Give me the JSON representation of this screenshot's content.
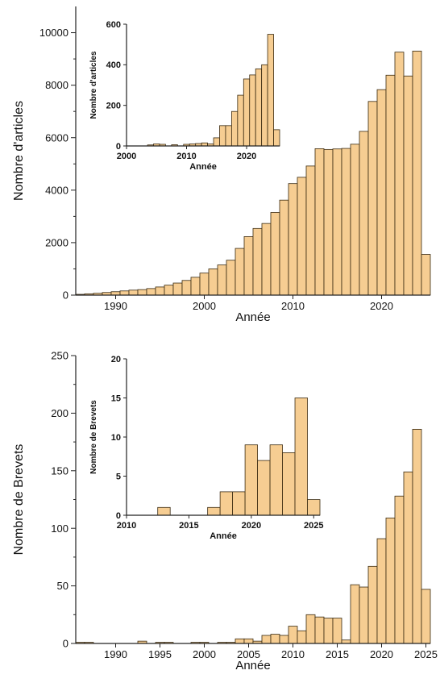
{
  "colors": {
    "bar_fill": "#f6cd92",
    "bar_stroke": "#3a2a10",
    "axis": "#222222"
  },
  "chart_data": [
    {
      "id": "articles_main",
      "type": "bar",
      "title": "",
      "xlabel": "Année",
      "ylabel": "Nombre d'articles",
      "xlim": [
        1985.5,
        2025.5
      ],
      "ylim": [
        0,
        11000
      ],
      "xticks": [
        1990,
        2000,
        2010,
        2020
      ],
      "yticks": [
        0,
        2000,
        4000,
        6000,
        8000,
        10000
      ],
      "grid": false,
      "bin_width": 1,
      "x": [
        1986,
        1987,
        1988,
        1989,
        1990,
        1991,
        1992,
        1993,
        1994,
        1995,
        1996,
        1997,
        1998,
        1999,
        2000,
        2001,
        2002,
        2003,
        2004,
        2005,
        2006,
        2007,
        2008,
        2009,
        2010,
        2011,
        2012,
        2013,
        2014,
        2015,
        2016,
        2017,
        2018,
        2019,
        2020,
        2021,
        2022,
        2023,
        2024,
        2025
      ],
      "values": [
        30,
        50,
        70,
        100,
        130,
        160,
        190,
        210,
        250,
        310,
        380,
        460,
        560,
        680,
        840,
        1000,
        1150,
        1330,
        1780,
        2230,
        2540,
        2730,
        3150,
        3620,
        4250,
        4490,
        4920,
        5580,
        5550,
        5570,
        5590,
        5750,
        6240,
        7380,
        7830,
        8380,
        9260,
        8350,
        9300,
        1550
      ]
    },
    {
      "id": "articles_inset",
      "type": "bar",
      "title": "",
      "xlabel": "Année",
      "ylabel": "Nombre d'articles",
      "xlim": [
        2000,
        2025.5
      ],
      "ylim": [
        0,
        600
      ],
      "xticks": [
        2000,
        2010,
        2020
      ],
      "yticks": [
        0,
        200,
        400,
        600
      ],
      "grid": false,
      "bin_width": 1,
      "x": [
        2001,
        2002,
        2003,
        2004,
        2005,
        2006,
        2007,
        2008,
        2009,
        2010,
        2011,
        2012,
        2013,
        2014,
        2015,
        2016,
        2017,
        2018,
        2019,
        2020,
        2021,
        2022,
        2023,
        2024,
        2025
      ],
      "values": [
        0,
        0,
        0,
        5,
        10,
        8,
        0,
        6,
        0,
        8,
        10,
        12,
        15,
        10,
        40,
        100,
        100,
        170,
        250,
        330,
        350,
        380,
        400,
        550,
        80
      ]
    },
    {
      "id": "patents_main",
      "type": "bar",
      "title": "",
      "xlabel": "Année",
      "ylabel": "Nombre de Brevets",
      "xlim": [
        1985.5,
        2025.5
      ],
      "ylim": [
        0,
        250
      ],
      "xticks": [
        1990,
        1995,
        2000,
        2005,
        2010,
        2015,
        2020,
        2025
      ],
      "yticks": [
        0,
        50,
        100,
        150,
        200,
        250
      ],
      "grid": false,
      "bin_width": 1,
      "x": [
        1986,
        1987,
        1988,
        1989,
        1990,
        1991,
        1992,
        1993,
        1994,
        1995,
        1996,
        1997,
        1998,
        1999,
        2000,
        2001,
        2002,
        2003,
        2004,
        2005,
        2006,
        2007,
        2008,
        2009,
        2010,
        2011,
        2012,
        2013,
        2014,
        2015,
        2016,
        2017,
        2018,
        2019,
        2020,
        2021,
        2022,
        2023,
        2024,
        2025
      ],
      "values": [
        1,
        1,
        0,
        0,
        0,
        0,
        0,
        2,
        0,
        1,
        1,
        0,
        0,
        1,
        1,
        0,
        1,
        1,
        4,
        4,
        2,
        7,
        8,
        7,
        15,
        11,
        25,
        23,
        22,
        22,
        3,
        51,
        49,
        67,
        91,
        109,
        128,
        149,
        186,
        47
      ]
    },
    {
      "id": "patents_inset",
      "type": "bar",
      "title": "",
      "xlabel": "Année",
      "ylabel": "Nombre de Brevets",
      "xlim": [
        2010,
        2025.5
      ],
      "ylim": [
        0,
        20
      ],
      "xticks": [
        2010,
        2015,
        2020,
        2025
      ],
      "yticks": [
        0,
        5,
        10,
        15,
        20
      ],
      "grid": false,
      "bin_width": 1,
      "x": [
        2011,
        2012,
        2013,
        2014,
        2015,
        2016,
        2017,
        2018,
        2019,
        2020,
        2021,
        2022,
        2023,
        2024,
        2025
      ],
      "values": [
        0,
        0,
        1,
        0,
        0,
        0,
        1,
        3,
        3,
        9,
        7,
        9,
        8,
        15,
        2
      ]
    }
  ]
}
